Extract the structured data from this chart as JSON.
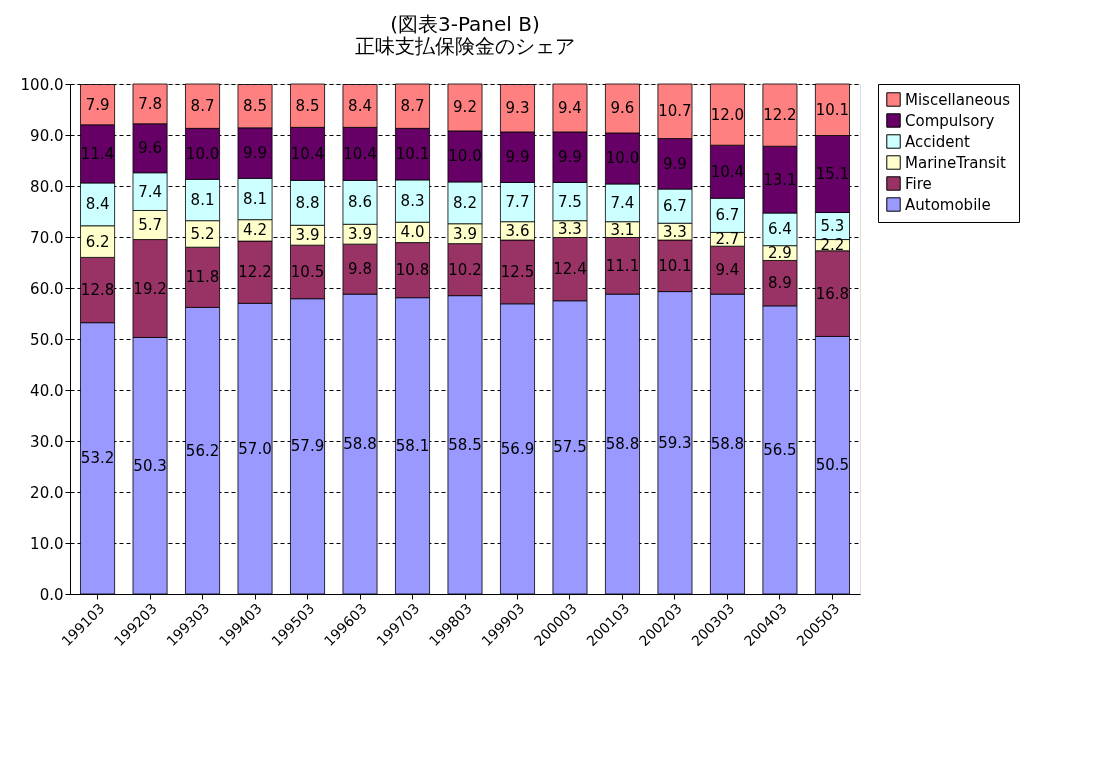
{
  "chart_data": {
    "type": "bar",
    "stacked": true,
    "title": [
      "(図表3-Panel B)",
      "正味支払保険金のシェア"
    ],
    "categories": [
      "199103",
      "199203",
      "199303",
      "199403",
      "199503",
      "199603",
      "199703",
      "199803",
      "199903",
      "200003",
      "200103",
      "200203",
      "200303",
      "200403",
      "200503"
    ],
    "ylim": [
      0,
      100
    ],
    "yticks": [
      {
        "value": 0,
        "label": "0.0"
      },
      {
        "value": 10,
        "label": "10.0"
      },
      {
        "value": 20,
        "label": "20.0"
      },
      {
        "value": 30,
        "label": "30.0"
      },
      {
        "value": 40,
        "label": "40.0"
      },
      {
        "value": 50,
        "label": "50.0"
      },
      {
        "value": 60,
        "label": "60.0"
      },
      {
        "value": 70,
        "label": "70.0"
      },
      {
        "value": 80,
        "label": "80.0"
      },
      {
        "value": 90,
        "label": "90.0"
      },
      {
        "value": 100,
        "label": "100.0"
      }
    ],
    "grid": "y",
    "legend": "right",
    "series": [
      {
        "name": "Automobile",
        "color": "#9999ff",
        "values": [
          53.2,
          50.3,
          56.2,
          57.0,
          57.9,
          58.8,
          58.1,
          58.5,
          56.9,
          57.5,
          58.8,
          59.3,
          58.8,
          56.5,
          50.5
        ],
        "value_labels": [
          "53.2",
          "50.3",
          "56.2",
          "57.0",
          "57.9",
          "58.8",
          "58.1",
          "58.5",
          "56.9",
          "57.5",
          "58.8",
          "59.3",
          "58.8",
          "56.5",
          "50.5"
        ]
      },
      {
        "name": "Fire",
        "color": "#993366",
        "values": [
          12.8,
          19.2,
          11.8,
          12.2,
          10.5,
          9.8,
          10.8,
          10.2,
          12.5,
          12.4,
          11.1,
          10.1,
          9.4,
          8.9,
          16.8
        ],
        "value_labels": [
          "12.8",
          "19.2",
          "11.8",
          "12.2",
          "10.5",
          "9.8",
          "10.8",
          "10.2",
          "12.5",
          "12.4",
          "11.1",
          "10.1",
          "9.4",
          "8.9",
          "16.8"
        ]
      },
      {
        "name": "MarineTransit",
        "color": "#ffffcc",
        "values": [
          6.2,
          5.7,
          5.2,
          4.2,
          3.9,
          3.9,
          4.0,
          3.9,
          3.6,
          3.3,
          3.1,
          3.3,
          2.7,
          2.9,
          2.2
        ],
        "value_labels": [
          "6.2",
          "5.7",
          "5.2",
          "4.2",
          "3.9",
          "3.9",
          "4.0",
          "3.9",
          "3.6",
          "3.3",
          "3.1",
          "3.3",
          "2.7",
          "2.9",
          "2.2"
        ]
      },
      {
        "name": "Accident",
        "color": "#ccffff",
        "values": [
          8.4,
          7.4,
          8.1,
          8.1,
          8.8,
          8.6,
          8.3,
          8.2,
          7.7,
          7.5,
          7.4,
          6.7,
          6.7,
          6.4,
          5.3
        ],
        "value_labels": [
          "8.4",
          "7.4",
          "8.1",
          "8.1",
          "8.8",
          "8.6",
          "8.3",
          "8.2",
          "7.7",
          "7.5",
          "7.4",
          "6.7",
          "6.7",
          "6.4",
          "5.3"
        ]
      },
      {
        "name": "Compulsory",
        "color": "#660066",
        "values": [
          11.4,
          9.6,
          10.0,
          9.9,
          10.4,
          10.4,
          10.1,
          10.0,
          9.9,
          9.9,
          10.0,
          9.9,
          10.4,
          13.1,
          15.1
        ],
        "value_labels": [
          "11.4",
          "9.6",
          "10.0",
          "9.9",
          "10.4",
          "10.4",
          "10.1",
          "10.0",
          "9.9",
          "9.9",
          "10.0",
          "9.9",
          "10.4",
          "13.1",
          "15.1"
        ]
      },
      {
        "name": "Miscellaneous",
        "color": "#ff8080",
        "values": [
          7.9,
          7.8,
          8.7,
          8.5,
          8.5,
          8.4,
          8.7,
          9.2,
          9.3,
          9.4,
          9.6,
          10.7,
          12.0,
          12.2,
          10.1
        ],
        "value_labels": [
          "7.9",
          "7.8",
          "8.7",
          "8.5",
          "8.5",
          "8.4",
          "8.7",
          "9.2",
          "9.3",
          "9.4",
          "9.6",
          "10.7",
          "12.0",
          "12.2",
          "10.1"
        ]
      }
    ]
  }
}
